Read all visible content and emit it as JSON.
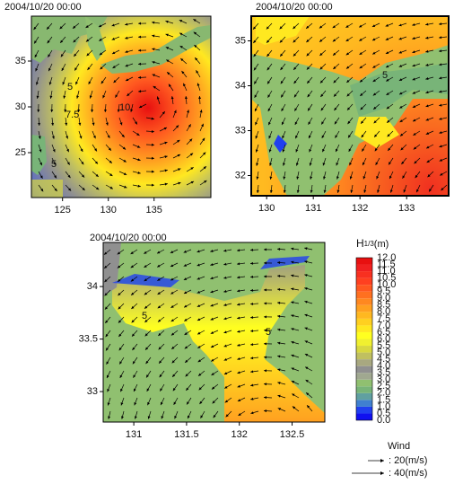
{
  "panels": [
    {
      "timestamp": "2004/10/20 00:00",
      "xlim": [
        121.6,
        141.2
      ],
      "ylim": [
        20.1,
        39.9
      ],
      "xticks": [
        125,
        130,
        135
      ],
      "yticks": [
        25,
        30,
        35
      ],
      "contour_labels": [
        "5",
        "7.5",
        "10",
        "5"
      ]
    },
    {
      "timestamp": "2004/10/20 00:00",
      "xlim": [
        129.67,
        133.9
      ],
      "ylim": [
        31.55,
        35.55
      ],
      "xticks": [
        130,
        131,
        132,
        133
      ],
      "yticks": [
        32,
        33,
        34,
        35
      ],
      "contour_labels": [
        "5"
      ]
    },
    {
      "timestamp": "2004/10/20 00:00",
      "xlim": [
        130.71,
        132.81
      ],
      "ylim": [
        32.71,
        34.42
      ],
      "xticks": [
        131,
        131.5,
        132,
        132.5
      ],
      "yticks": [
        33,
        33.5,
        34
      ],
      "contour_labels": [
        "5",
        "5"
      ]
    }
  ],
  "colorbar": {
    "title": "H",
    "subscript": "1/3",
    "unit": "(m)",
    "labels": [
      "0.0",
      "0.5",
      "1.0",
      "1.5",
      "2.0",
      "2.5",
      "3.0",
      "3.5",
      "4.0",
      "4.5",
      "5.0",
      "5.5",
      "6.0",
      "6.5",
      "7.0",
      "7.5",
      "8.0",
      "8.5",
      "9.0",
      "9.5",
      "10.0",
      "10.5",
      "11.0",
      "11.5",
      "12.0"
    ],
    "colors": [
      "#1010f0",
      "#2040f0",
      "#4080d0",
      "#60a0a0",
      "#78b478",
      "#90c070",
      "#a0a890",
      "#909090",
      "#a8a880",
      "#c0c060",
      "#d8d840",
      "#f0f030",
      "#ffff20",
      "#ffe820",
      "#ffd020",
      "#ffb820",
      "#ffa020",
      "#ff8820",
      "#ff7020",
      "#ff5820",
      "#ff4020",
      "#f83020",
      "#f02020",
      "#e81010"
    ]
  },
  "wind_legend": {
    "title": "Wind",
    "items": [
      ": 20(m/s)",
      ": 40(m/s)"
    ]
  }
}
